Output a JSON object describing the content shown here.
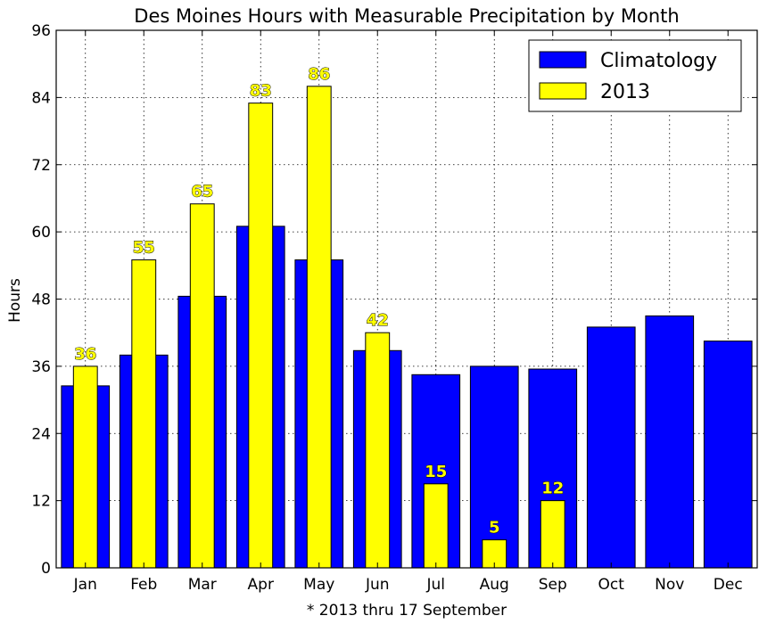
{
  "chart_data": {
    "type": "bar",
    "title": "Des Moines Hours with Measurable Precipitation by Month",
    "xlabel": "* 2013 thru 17 September",
    "ylabel": "Hours",
    "ylim": [
      0,
      96
    ],
    "yticks": [
      "0",
      "12",
      "24",
      "36",
      "48",
      "60",
      "72",
      "84",
      "96"
    ],
    "grid": true,
    "legend_position": "top-right",
    "categories": [
      "Jan",
      "Feb",
      "Mar",
      "Apr",
      "May",
      "Jun",
      "Jul",
      "Aug",
      "Sep",
      "Oct",
      "Nov",
      "Dec"
    ],
    "series": [
      {
        "name": "Climatology",
        "color": "#0000ff",
        "values": [
          32.5,
          38,
          48.5,
          61,
          55,
          38.8,
          34.5,
          36,
          35.5,
          43,
          45,
          40.5
        ]
      },
      {
        "name": "2013",
        "color": "#ffff00",
        "values": [
          36,
          55,
          65,
          83,
          86,
          42,
          15,
          5,
          12,
          null,
          null,
          null
        ],
        "data_labels": [
          "36",
          "55",
          "65",
          "83",
          "86",
          "42",
          "15",
          "5",
          "12"
        ]
      }
    ]
  }
}
